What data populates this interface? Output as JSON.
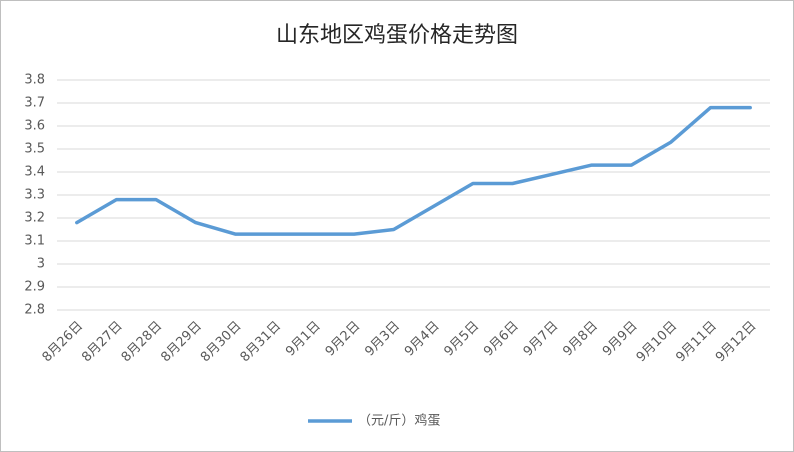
{
  "chart_data": {
    "type": "line",
    "title": "山东地区鸡蛋价格走势图",
    "categories": [
      "8月26日",
      "8月27日",
      "8月28日",
      "8月29日",
      "8月30日",
      "8月31日",
      "9月1日",
      "9月2日",
      "9月3日",
      "9月4日",
      "9月5日",
      "9月6日",
      "9月7日",
      "9月8日",
      "9月9日",
      "9月10日",
      "9月11日",
      "9月12日"
    ],
    "series": [
      {
        "name": "（元/斤）鸡蛋",
        "color": "#5b9bd5",
        "values": [
          3.18,
          3.28,
          3.28,
          3.18,
          3.13,
          3.13,
          3.13,
          3.13,
          3.15,
          3.25,
          3.35,
          3.35,
          3.39,
          3.43,
          3.43,
          3.53,
          3.68,
          3.68
        ]
      }
    ],
    "ylim": [
      2.8,
      3.8
    ],
    "yticks": [
      2.8,
      2.9,
      3,
      3.1,
      3.2,
      3.3,
      3.4,
      3.5,
      3.6,
      3.7,
      3.8
    ],
    "grid": true,
    "legend": "bottom"
  }
}
